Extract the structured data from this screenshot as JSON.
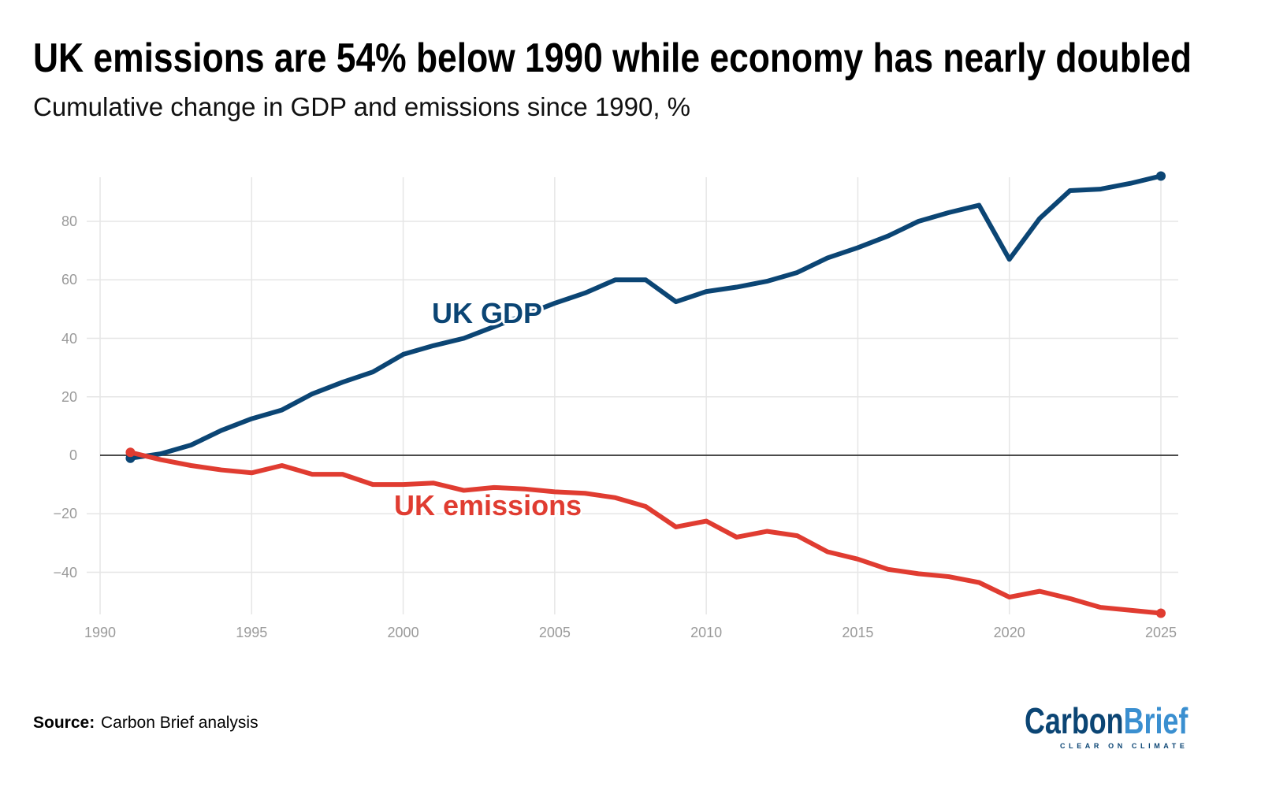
{
  "chart_data": {
    "type": "line",
    "title": "UK emissions are 54% below 1990 while economy has nearly doubled",
    "subtitle": "Cumulative change in GDP and emissions since 1990, %",
    "xlabel": "",
    "ylabel": "",
    "xlim": [
      1990,
      2025
    ],
    "ylim": [
      -54.5,
      95
    ],
    "x_ticks": [
      "1990",
      "1995",
      "2000",
      "2005",
      "2010",
      "2015",
      "2020",
      "2025"
    ],
    "y_ticks": [
      "−40",
      "−20",
      "0",
      "20",
      "40",
      "60",
      "80"
    ],
    "y_tick_values": [
      -40,
      -20,
      0,
      20,
      40,
      60,
      80
    ],
    "grid": true,
    "legend": "inline labels",
    "x": [
      1991,
      1992,
      1993,
      1994,
      1995,
      1996,
      1997,
      1998,
      1999,
      2000,
      2001,
      2002,
      2003,
      2004,
      2005,
      2006,
      2007,
      2008,
      2009,
      2010,
      2011,
      2012,
      2013,
      2014,
      2015,
      2016,
      2017,
      2018,
      2019,
      2020,
      2021,
      2022,
      2023,
      2024,
      2025
    ],
    "series": [
      {
        "name": "UK GDP",
        "color": "#0b4574",
        "values": [
          -1,
          0.5,
          3.5,
          8.5,
          12.5,
          15.5,
          21,
          25,
          28.5,
          34.5,
          37.5,
          40,
          44,
          48,
          52,
          55.5,
          60,
          60,
          52.5,
          56,
          57.5,
          59.5,
          62.5,
          67.5,
          71,
          75,
          80,
          83,
          85.5,
          67,
          81,
          90.5,
          91,
          93,
          95.5
        ]
      },
      {
        "name": "UK emissions",
        "color": "#e03c31",
        "values": [
          1,
          -1.5,
          -3.5,
          -5,
          -6,
          -3.5,
          -6.5,
          -6.5,
          -10,
          -10,
          -9.5,
          -12,
          -11,
          -11.5,
          -12.5,
          -13,
          -14.5,
          -17.5,
          -24.5,
          -22.5,
          -28,
          -26,
          -27.5,
          -33,
          -35.5,
          -39,
          -40.5,
          -41.5,
          -43.5,
          -48.5,
          -46.5,
          -49,
          -52,
          -53,
          -54
        ]
      }
    ]
  },
  "footer": {
    "source_label": "Source:",
    "source_text": "Carbon Brief analysis"
  },
  "logo": {
    "part1": "Carbon",
    "part2": "Brief",
    "tagline": "CLEAR ON CLIMATE",
    "color1": "#0b4574",
    "color2": "#3a8fd0"
  }
}
